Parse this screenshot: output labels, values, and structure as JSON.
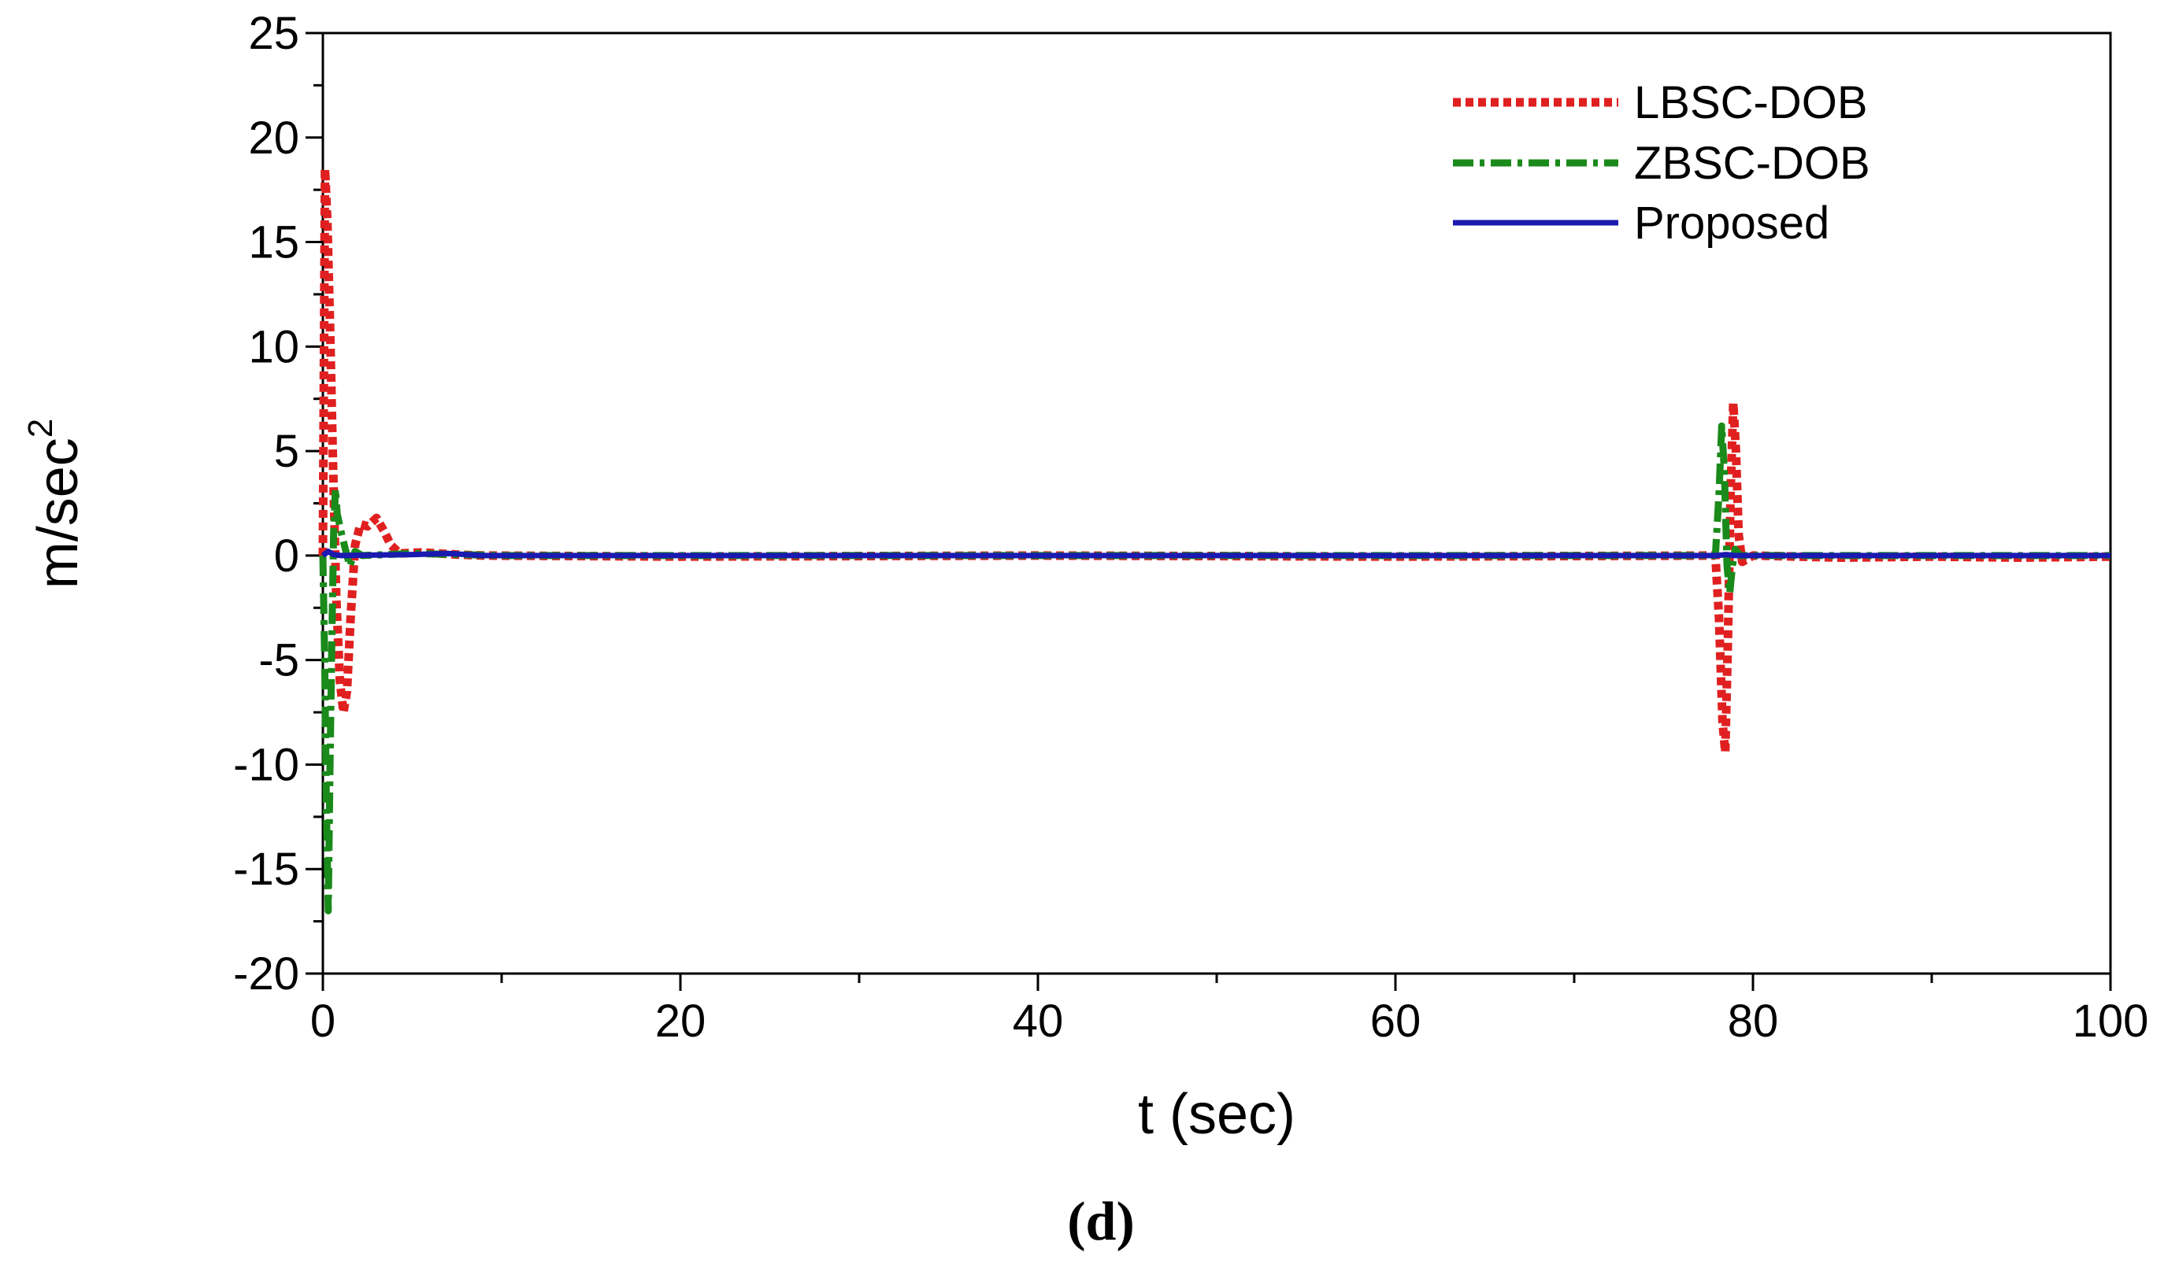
{
  "chart_data": {
    "type": "line",
    "title": "",
    "xlabel": "t (sec)",
    "ylabel_base": "m/sec",
    "ylabel_sup": "2",
    "xlim": [
      0,
      100
    ],
    "ylim": [
      -20,
      25
    ],
    "xticks": [
      0,
      20,
      40,
      60,
      80,
      100
    ],
    "xtick_labels": [
      "0",
      "20",
      "40",
      "60",
      "80",
      "100"
    ],
    "yticks": [
      -20,
      -15,
      -10,
      -5,
      0,
      5,
      10,
      15,
      20,
      25
    ],
    "ytick_labels": [
      "-20",
      "-15",
      "-10",
      "-5",
      "0",
      "5",
      "10",
      "15",
      "20",
      "25"
    ],
    "grid": false,
    "legend_position": "top-right",
    "caption": "(d)",
    "series": [
      {
        "name": "LBSC-DOB",
        "color": "#e02020",
        "style": "dotted",
        "points": [
          [
            0,
            0
          ],
          [
            0.12,
            18.5
          ],
          [
            0.25,
            16
          ],
          [
            0.4,
            11
          ],
          [
            0.55,
            5
          ],
          [
            0.75,
            -2
          ],
          [
            0.95,
            -6
          ],
          [
            1.15,
            -7.5
          ],
          [
            1.35,
            -6.5
          ],
          [
            1.55,
            -3
          ],
          [
            1.8,
            0.5
          ],
          [
            2.1,
            1.5
          ],
          [
            2.5,
            1.4
          ],
          [
            3.0,
            1.8
          ],
          [
            3.4,
            1.2
          ],
          [
            3.8,
            0.5
          ],
          [
            4.3,
            0.1
          ],
          [
            5.5,
            0.15
          ],
          [
            7.5,
            0.05
          ],
          [
            9.0,
            0
          ],
          [
            20,
            -0.05
          ],
          [
            40,
            0
          ],
          [
            60,
            -0.05
          ],
          [
            77.9,
            0
          ],
          [
            78.1,
            -3
          ],
          [
            78.3,
            -8
          ],
          [
            78.45,
            -9.4
          ],
          [
            78.6,
            -4
          ],
          [
            78.75,
            3
          ],
          [
            78.9,
            7.3
          ],
          [
            79.05,
            5
          ],
          [
            79.2,
            1
          ],
          [
            79.4,
            -0.3
          ],
          [
            80,
            0
          ],
          [
            85,
            -0.1
          ],
          [
            90,
            -0.05
          ],
          [
            95,
            -0.1
          ],
          [
            100,
            -0.05
          ]
        ]
      },
      {
        "name": "ZBSC-DOB",
        "color": "#1a8a1a",
        "style": "dashdot",
        "points": [
          [
            0,
            0
          ],
          [
            0.1,
            -5
          ],
          [
            0.2,
            -12
          ],
          [
            0.3,
            -17
          ],
          [
            0.4,
            -10
          ],
          [
            0.5,
            -4
          ],
          [
            0.6,
            1
          ],
          [
            0.7,
            3.2
          ],
          [
            0.8,
            2
          ],
          [
            1.0,
            1.2
          ],
          [
            1.2,
            0.5
          ],
          [
            1.5,
            -0.5
          ],
          [
            1.8,
            0.2
          ],
          [
            2.2,
            0
          ],
          [
            5,
            0.1
          ],
          [
            10,
            0
          ],
          [
            40,
            0
          ],
          [
            77.9,
            0
          ],
          [
            78.1,
            3
          ],
          [
            78.25,
            6.2
          ],
          [
            78.4,
            4
          ],
          [
            78.55,
            -0.5
          ],
          [
            78.7,
            -1.8
          ],
          [
            78.85,
            -0.5
          ],
          [
            79.0,
            0.3
          ],
          [
            79.3,
            0
          ],
          [
            100,
            0
          ]
        ]
      },
      {
        "name": "Proposed",
        "color": "#1a1ab0",
        "style": "solid",
        "points": [
          [
            0,
            0
          ],
          [
            0.3,
            0.2
          ],
          [
            0.6,
            0.05
          ],
          [
            1,
            0
          ],
          [
            5,
            0.05
          ],
          [
            7,
            0.1
          ],
          [
            9,
            0
          ],
          [
            50,
            0
          ],
          [
            78,
            0
          ],
          [
            78.5,
            0.05
          ],
          [
            79,
            0
          ],
          [
            100,
            0
          ]
        ]
      }
    ]
  }
}
